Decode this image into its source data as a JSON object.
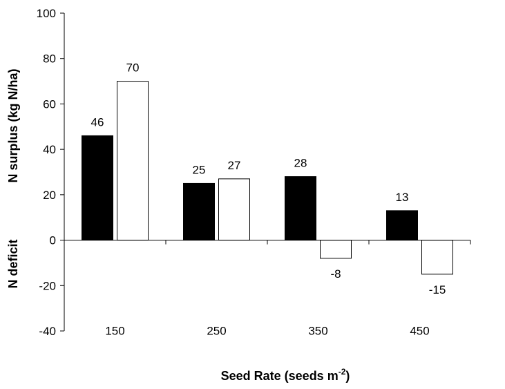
{
  "chart_data": {
    "type": "bar",
    "categories": [
      "150",
      "250",
      "350",
      "450"
    ],
    "series": [
      {
        "values": [
          46,
          25,
          28,
          13
        ],
        "color": "#000000"
      },
      {
        "values": [
          70,
          27,
          -8,
          -15
        ],
        "color": "#ffffff"
      }
    ],
    "data_labels": {
      "series_1": [
        "46",
        "25",
        "28",
        "13"
      ],
      "series_2": [
        "70",
        "27",
        "-8",
        "-15"
      ]
    },
    "xlabel": "Seed Rate (seeds m",
    "xlabel_superscript": "-2",
    "xlabel_suffix": ")",
    "ylabel_upper": "N surplus (kg N/ha)",
    "ylabel_lower": "N deficit",
    "ylim": [
      -40,
      100
    ],
    "yticks": [
      100,
      80,
      60,
      40,
      20,
      0,
      -20,
      -40
    ],
    "grid": false,
    "legend": "none"
  }
}
